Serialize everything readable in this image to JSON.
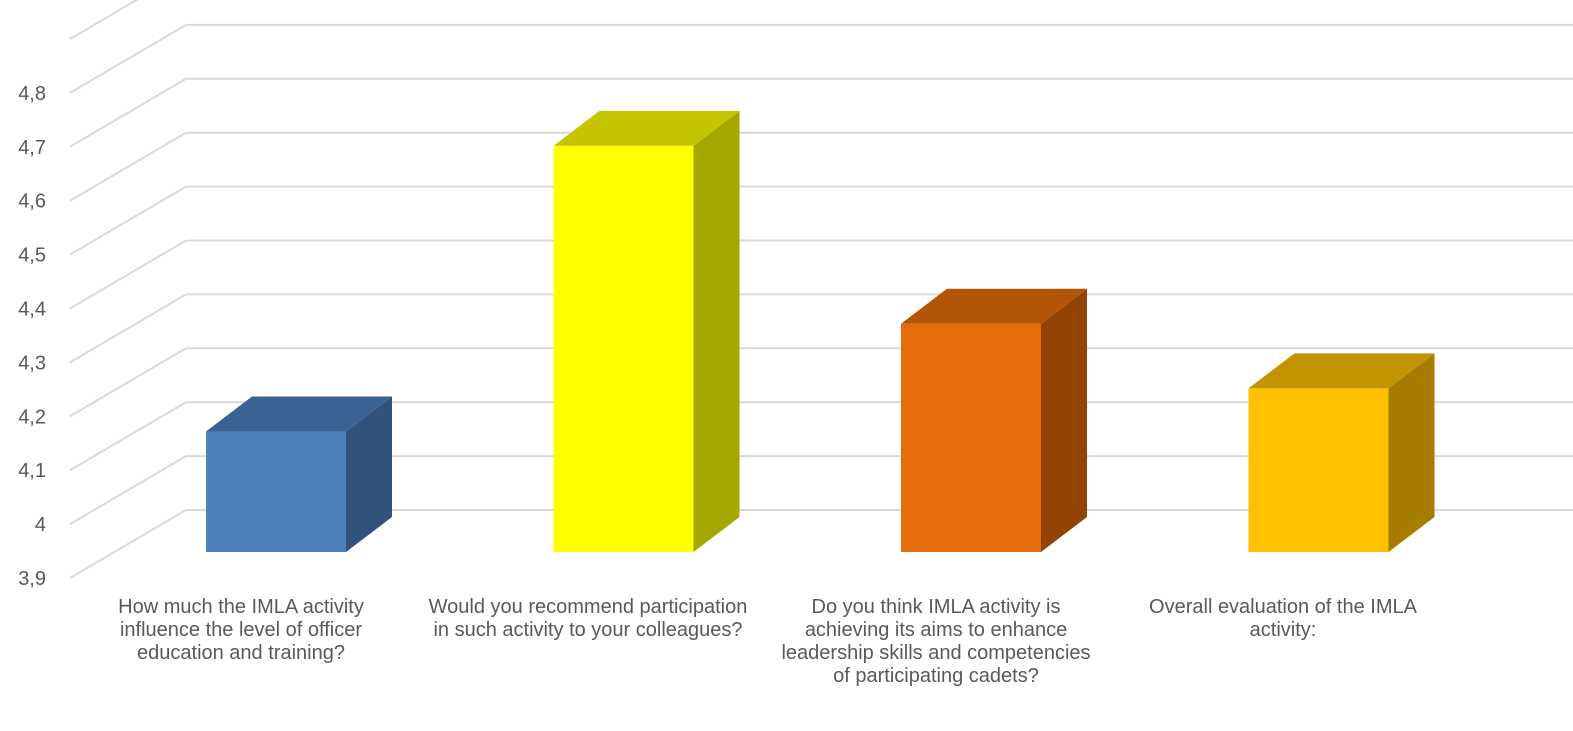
{
  "chart_data": {
    "type": "bar",
    "style": "3d-column",
    "title": "",
    "xlabel": "",
    "ylabel": "",
    "categories": [
      "How much the IMLA activity influence the level of officer education and training?",
      "Would you recommend participation in such activity to your colleagues?",
      "Do you think IMLA activity is achieving its aims to enhance leadership skills and competencies of participating cadets?",
      "Overall evaluation of the IMLA activity:"
    ],
    "values": [
      4.22,
      4.75,
      4.42,
      4.3
    ],
    "ylim": [
      3.9,
      4.9
    ],
    "y_ticks": [
      "3,9",
      "4",
      "4,1",
      "4,2",
      "4,3",
      "4,4",
      "4,5",
      "4,6",
      "4,7",
      "4,8"
    ],
    "grid": true,
    "legend": "none",
    "colors": {
      "front": [
        "#4F81BD",
        "#FFFF00",
        "#E46C0A",
        "#FFC000"
      ],
      "top": [
        "#3A6293",
        "#C4C400",
        "#B35407",
        "#C49300"
      ],
      "side": [
        "#30527B",
        "#A6A600",
        "#934405",
        "#A67D00"
      ],
      "grid": "#D9D9D9",
      "text": "#595959"
    }
  }
}
